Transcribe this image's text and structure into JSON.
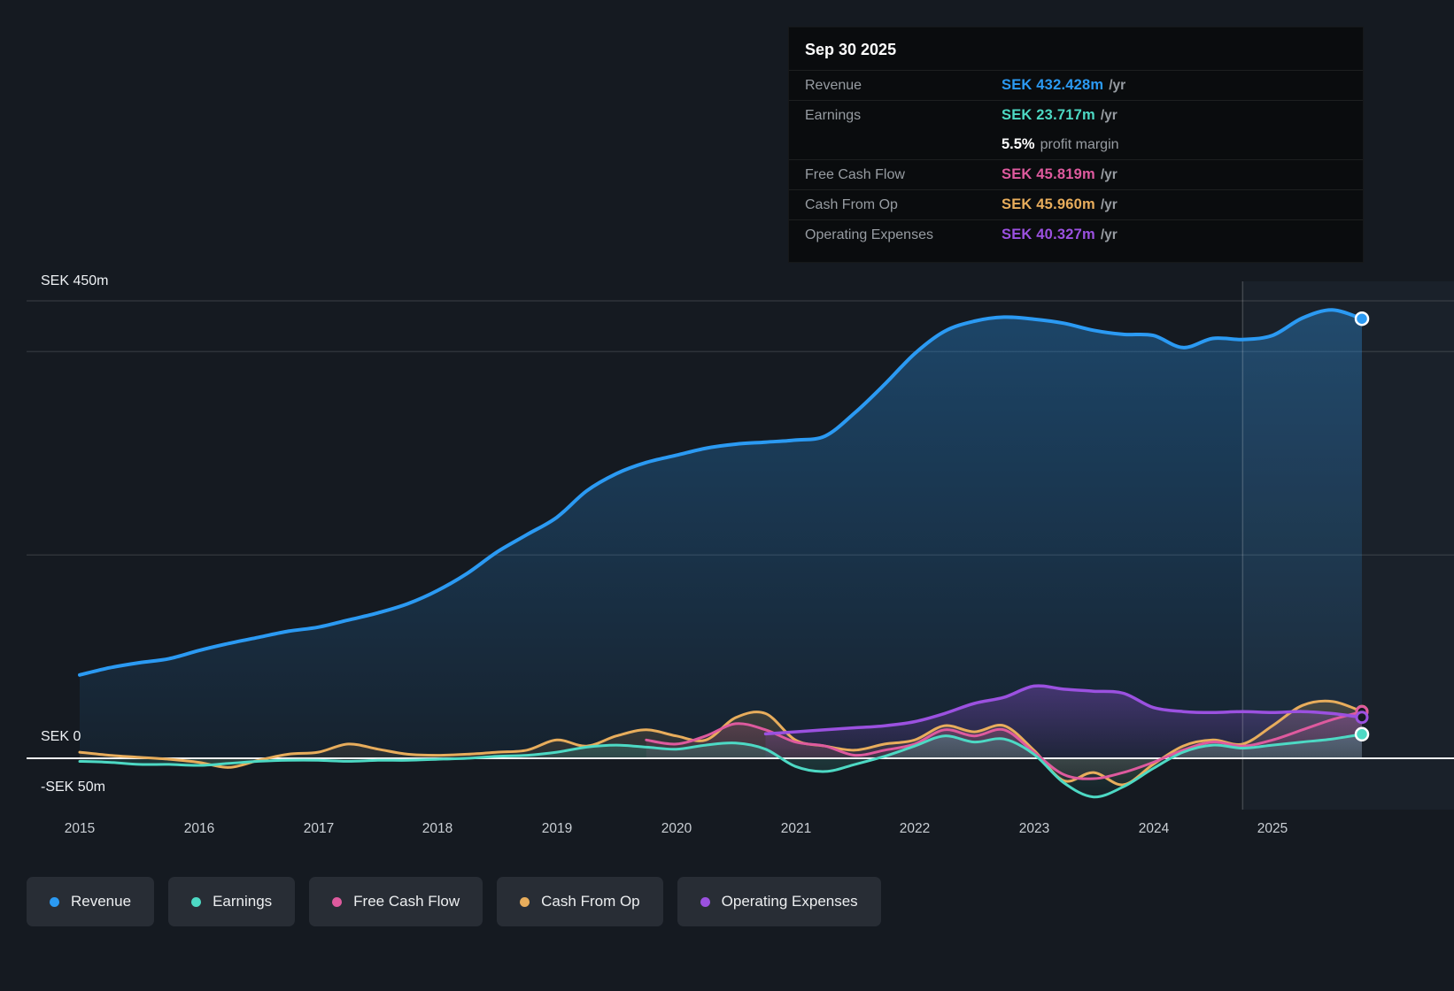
{
  "tooltip": {
    "date": "Sep 30 2025",
    "rows": [
      {
        "label": "Revenue",
        "value": "SEK 432.428m",
        "suffix": "/yr",
        "color": "#2b9af3"
      },
      {
        "label": "Earnings",
        "value": "SEK 23.717m",
        "suffix": "/yr",
        "color": "#4dd9c4"
      },
      {
        "label": "Free Cash Flow",
        "value": "SEK 45.819m",
        "suffix": "/yr",
        "color": "#de5a9e"
      },
      {
        "label": "Cash From Op",
        "value": "SEK 45.960m",
        "suffix": "/yr",
        "color": "#e8ad5c"
      },
      {
        "label": "Operating Expenses",
        "value": "SEK 40.327m",
        "suffix": "/yr",
        "color": "#9b51e0"
      }
    ],
    "profit_margin": {
      "bold": "5.5%",
      "text": "profit margin"
    }
  },
  "legend": {
    "items": [
      {
        "label": "Revenue",
        "color": "#2b9af3"
      },
      {
        "label": "Earnings",
        "color": "#4dd9c4"
      },
      {
        "label": "Free Cash Flow",
        "color": "#de5a9e"
      },
      {
        "label": "Cash From Op",
        "color": "#e8ad5c"
      },
      {
        "label": "Operating Expenses",
        "color": "#9b51e0"
      }
    ]
  },
  "chart_data": {
    "type": "area",
    "title": "",
    "unit": "SEK millions per year",
    "xlim": [
      2014.55,
      2026.5
    ],
    "ylim": [
      -50,
      450
    ],
    "y_gridlines": [
      450,
      400,
      200
    ],
    "zero_line": 0,
    "divider_x": 2024.75,
    "y_labels": [
      {
        "text": "SEK 450m",
        "value": 450
      },
      {
        "text": "SEK 0",
        "value": 0
      },
      {
        "text": "-SEK 50m",
        "value": -50
      }
    ],
    "x_ticks": [
      "2015",
      "2016",
      "2017",
      "2018",
      "2019",
      "2020",
      "2021",
      "2022",
      "2023",
      "2024",
      "2025"
    ],
    "series": [
      {
        "name": "Revenue",
        "color": "#2b9af3",
        "fill_opacity": 0.34,
        "line_width": 4,
        "marker": "dot",
        "x": [
          2015,
          2015.25,
          2015.5,
          2015.75,
          2016,
          2016.25,
          2016.5,
          2016.75,
          2017,
          2017.25,
          2017.5,
          2017.75,
          2018,
          2018.25,
          2018.5,
          2018.75,
          2019,
          2019.25,
          2019.5,
          2019.75,
          2020,
          2020.25,
          2020.5,
          2020.75,
          2021,
          2021.25,
          2021.5,
          2021.75,
          2022,
          2022.25,
          2022.5,
          2022.75,
          2023,
          2023.25,
          2023.5,
          2023.75,
          2024,
          2024.25,
          2024.5,
          2024.75,
          2025,
          2025.25,
          2025.5,
          2025.75
        ],
        "values": [
          82,
          89,
          94,
          98,
          106,
          113,
          119,
          125,
          129,
          136,
          143,
          152,
          165,
          182,
          203,
          220,
          237,
          263,
          280,
          291,
          298,
          305,
          309,
          311,
          313,
          317,
          340,
          368,
          398,
          420,
          430,
          434,
          432,
          428,
          421,
          417,
          416,
          404,
          413,
          412,
          416,
          433,
          441,
          432.4
        ]
      },
      {
        "name": "Cash From Op",
        "color": "#e8ad5c",
        "fill_opacity": 0.2,
        "line_width": 3,
        "marker": "ring",
        "x": [
          2015,
          2015.25,
          2015.5,
          2015.75,
          2016,
          2016.25,
          2016.5,
          2016.75,
          2017,
          2017.25,
          2017.5,
          2017.75,
          2018,
          2018.25,
          2018.5,
          2018.75,
          2019,
          2019.25,
          2019.5,
          2019.75,
          2020,
          2020.25,
          2020.5,
          2020.75,
          2021,
          2021.25,
          2021.5,
          2021.75,
          2022,
          2022.25,
          2022.5,
          2022.75,
          2023,
          2023.25,
          2023.5,
          2023.75,
          2024,
          2024.25,
          2024.5,
          2024.75,
          2025,
          2025.25,
          2025.5,
          2025.75
        ],
        "values": [
          6,
          3,
          1,
          -1,
          -4,
          -9,
          -2,
          4,
          6,
          14,
          9,
          4,
          3,
          4,
          6,
          8,
          18,
          12,
          22,
          28,
          22,
          18,
          40,
          44,
          18,
          12,
          8,
          14,
          18,
          32,
          26,
          32,
          8,
          -22,
          -14,
          -26,
          -6,
          12,
          18,
          14,
          32,
          52,
          56,
          46
        ]
      },
      {
        "name": "Free Cash Flow",
        "color": "#de5a9e",
        "fill_opacity": 0.2,
        "line_width": 3,
        "marker": "ring",
        "x": [
          2019.75,
          2020,
          2020.25,
          2020.5,
          2020.75,
          2021,
          2021.25,
          2021.5,
          2021.75,
          2022,
          2022.25,
          2022.5,
          2022.75,
          2023,
          2023.25,
          2023.5,
          2023.75,
          2024,
          2024.25,
          2024.5,
          2024.75,
          2025,
          2025.25,
          2025.5,
          2025.75
        ],
        "values": [
          18,
          14,
          22,
          34,
          28,
          16,
          12,
          3,
          8,
          14,
          28,
          22,
          28,
          6,
          -16,
          -20,
          -14,
          -4,
          8,
          16,
          12,
          18,
          28,
          38,
          45.8
        ]
      },
      {
        "name": "Operating Expenses",
        "color": "#9b51e0",
        "fill_opacity": 0.34,
        "line_width": 3.5,
        "marker": "ring",
        "x": [
          2020.75,
          2021,
          2021.25,
          2021.5,
          2021.75,
          2022,
          2022.25,
          2022.5,
          2022.75,
          2023,
          2023.25,
          2023.5,
          2023.75,
          2024,
          2024.25,
          2024.5,
          2024.75,
          2025,
          2025.25,
          2025.5,
          2025.75
        ],
        "values": [
          24,
          26,
          28,
          30,
          32,
          36,
          44,
          54,
          60,
          71,
          68,
          66,
          64,
          50,
          46,
          45,
          46,
          45,
          46,
          44,
          40.3
        ]
      },
      {
        "name": "Earnings",
        "color": "#4dd9c4",
        "fill_opacity": 0.22,
        "line_width": 3,
        "marker": "dot",
        "x": [
          2015,
          2015.25,
          2015.5,
          2015.75,
          2016,
          2016.25,
          2016.5,
          2016.75,
          2017,
          2017.25,
          2017.5,
          2017.75,
          2018,
          2018.25,
          2018.5,
          2018.75,
          2019,
          2019.25,
          2019.5,
          2019.75,
          2020,
          2020.25,
          2020.5,
          2020.75,
          2021,
          2021.25,
          2021.5,
          2021.75,
          2022,
          2022.25,
          2022.5,
          2022.75,
          2023,
          2023.25,
          2023.5,
          2023.75,
          2024,
          2024.25,
          2024.5,
          2024.75,
          2025,
          2025.25,
          2025.5,
          2025.75
        ],
        "values": [
          -3,
          -4,
          -6,
          -6,
          -7,
          -5,
          -3,
          -2,
          -2,
          -3,
          -2,
          -2,
          -1,
          0,
          2,
          3,
          6,
          11,
          13,
          11,
          9,
          13,
          15,
          9,
          -8,
          -13,
          -6,
          2,
          12,
          22,
          16,
          19,
          4,
          -24,
          -38,
          -28,
          -10,
          6,
          13,
          10,
          13,
          16,
          19,
          23.7
        ]
      }
    ]
  }
}
